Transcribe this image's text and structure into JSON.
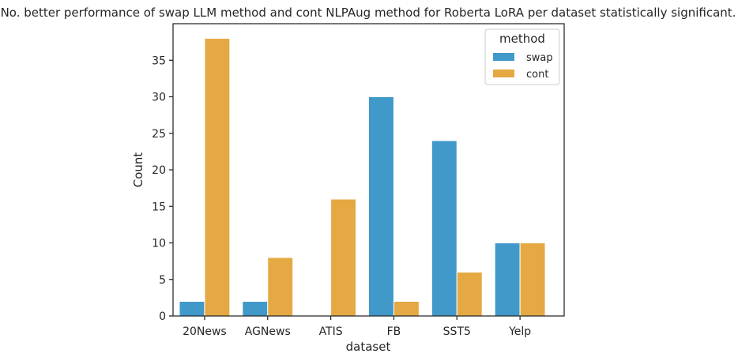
{
  "chart_data": {
    "type": "bar",
    "title": "No. better performance of swap LLM method and cont NLPAug method for Roberta LoRA per dataset statistically significant.",
    "xlabel": "dataset",
    "ylabel": "Count",
    "categories": [
      "20News",
      "AGNews",
      "ATIS",
      "FB",
      "SST5",
      "Yelp"
    ],
    "series": [
      {
        "name": "swap",
        "values": [
          2,
          2,
          0,
          30,
          24,
          10
        ],
        "color": "#4199CA"
      },
      {
        "name": "cont",
        "values": [
          38,
          8,
          16,
          2,
          6,
          10
        ],
        "color": "#E4A942"
      }
    ],
    "ylim": [
      0,
      40
    ],
    "yticks": [
      0,
      5,
      10,
      15,
      20,
      25,
      30,
      35
    ],
    "legend": {
      "title": "method",
      "placement": "top-right"
    },
    "grid": false
  }
}
